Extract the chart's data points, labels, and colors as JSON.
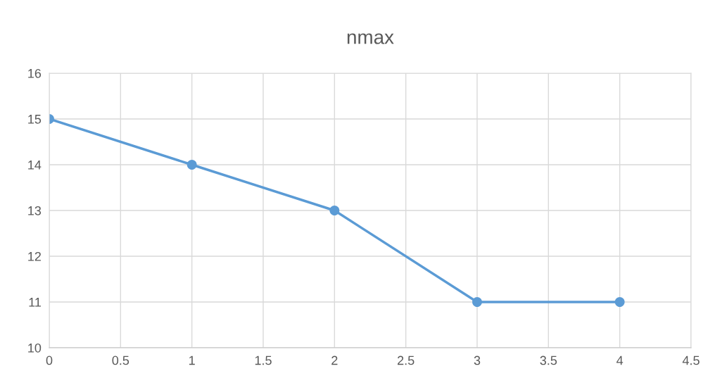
{
  "chart_data": {
    "type": "line",
    "title": "nmax",
    "x": [
      0,
      1,
      2,
      3,
      4
    ],
    "series": [
      {
        "color": "#5b9bd5",
        "values": [
          15,
          14,
          13,
          11,
          11
        ]
      }
    ],
    "xlim": [
      0,
      4.5
    ],
    "xticks": [
      0,
      {
        "value": 0.5,
        "label": "0.5"
      },
      1,
      {
        "value": 1.5,
        "label": "1.5"
      },
      2,
      {
        "value": 2.5,
        "label": "2.5"
      },
      3,
      {
        "value": 3.5,
        "label": "3.5"
      },
      4,
      {
        "value": 4.5,
        "label": "4.5"
      }
    ],
    "ylim": [
      10,
      16
    ],
    "yticks": [
      10,
      11,
      12,
      13,
      14,
      15,
      16
    ],
    "grid": true,
    "marker": "circle",
    "line_style": "solid"
  }
}
